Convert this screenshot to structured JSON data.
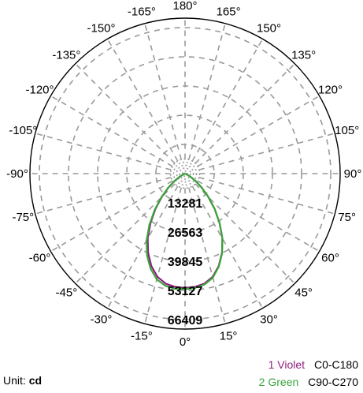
{
  "chart_data": {
    "type": "polar",
    "unit_label": "Unit:",
    "unit_value": "cd",
    "angle_labels": [
      "180°",
      "165°",
      "150°",
      "135°",
      "120°",
      "105°",
      "90°",
      "75°",
      "60°",
      "45°",
      "30°",
      "15°",
      "0°",
      "-15°",
      "-30°",
      "-45°",
      "-60°",
      "-75°",
      "-90°",
      "-105°",
      "-120°",
      "-135°",
      "-150°",
      "-165°"
    ],
    "radial_ticks": [
      13281,
      26563,
      39845,
      53127,
      66409
    ],
    "radial_max": 66409,
    "series": [
      {
        "name": "C0-C180",
        "legend_number": "1",
        "legend_color_name": "Violet",
        "color": "#8e1f7b",
        "angles": [
          0,
          5,
          10,
          15,
          20,
          25,
          30,
          35,
          40,
          45,
          50,
          55,
          60,
          70,
          80,
          90,
          -5,
          -10,
          -15,
          -20,
          -25,
          -30,
          -35,
          -40,
          -45,
          -50,
          -55,
          -60,
          -70,
          -80,
          -90
        ],
        "values": [
          52000,
          51700,
          50800,
          48600,
          44800,
          39800,
          34000,
          27500,
          21000,
          15000,
          10000,
          6000,
          3000,
          700,
          100,
          0,
          51700,
          50800,
          48600,
          44800,
          39800,
          34000,
          27500,
          21000,
          15000,
          10000,
          6000,
          3000,
          700,
          100,
          0
        ]
      },
      {
        "name": "C90-C270",
        "legend_number": "2",
        "legend_color_name": "Green",
        "color": "#3aa53a",
        "angles": [
          0,
          5,
          10,
          15,
          20,
          25,
          30,
          35,
          40,
          45,
          50,
          55,
          60,
          70,
          80,
          90,
          -5,
          -10,
          -15,
          -20,
          -25,
          -30,
          -35,
          -40,
          -45,
          -50,
          -55,
          -60,
          -70,
          -80,
          -90
        ],
        "values": [
          52500,
          52200,
          51200,
          49000,
          45000,
          40000,
          34000,
          27500,
          21000,
          15000,
          10000,
          6000,
          3000,
          700,
          100,
          0,
          52600,
          51800,
          49800,
          46000,
          41000,
          35000,
          28300,
          21500,
          15300,
          10100,
          6000,
          3000,
          700,
          100,
          0
        ]
      }
    ]
  }
}
